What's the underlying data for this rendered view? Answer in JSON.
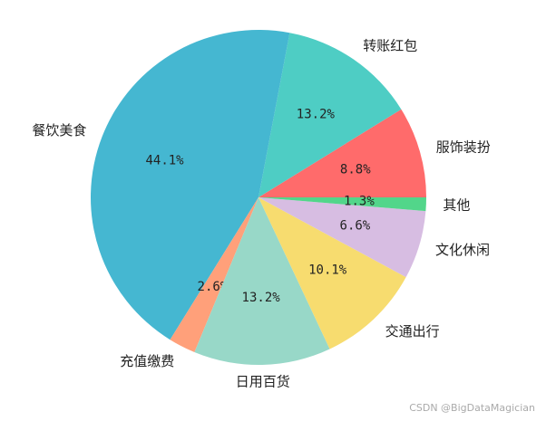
{
  "chart_data": {
    "type": "pie",
    "title": "",
    "slices": [
      {
        "label": "服饰装扮",
        "value": 8.8,
        "pct_label": "8.8%",
        "color": "#ff6b6b"
      },
      {
        "label": "转账红包",
        "value": 13.2,
        "pct_label": "13.2%",
        "color": "#4ecdc4"
      },
      {
        "label": "餐饮美食",
        "value": 44.1,
        "pct_label": "44.1%",
        "color": "#45b7d1"
      },
      {
        "label": "充值缴费",
        "value": 2.6,
        "pct_label": "2.6%",
        "color": "#ffa07a"
      },
      {
        "label": "日用百货",
        "value": 13.2,
        "pct_label": "13.2%",
        "color": "#98d8c8"
      },
      {
        "label": "交通出行",
        "value": 10.1,
        "pct_label": "10.1%",
        "color": "#f7dc6f"
      },
      {
        "label": "文化休闲",
        "value": 6.6,
        "pct_label": "6.6%",
        "color": "#d7bde2"
      },
      {
        "label": "其他",
        "value": 1.3,
        "pct_label": "1.3%",
        "color": "#52d68a"
      }
    ],
    "start_angle_deg": 0,
    "direction": "counterclockwise"
  },
  "watermark": "CSDN @BigDataMagician"
}
